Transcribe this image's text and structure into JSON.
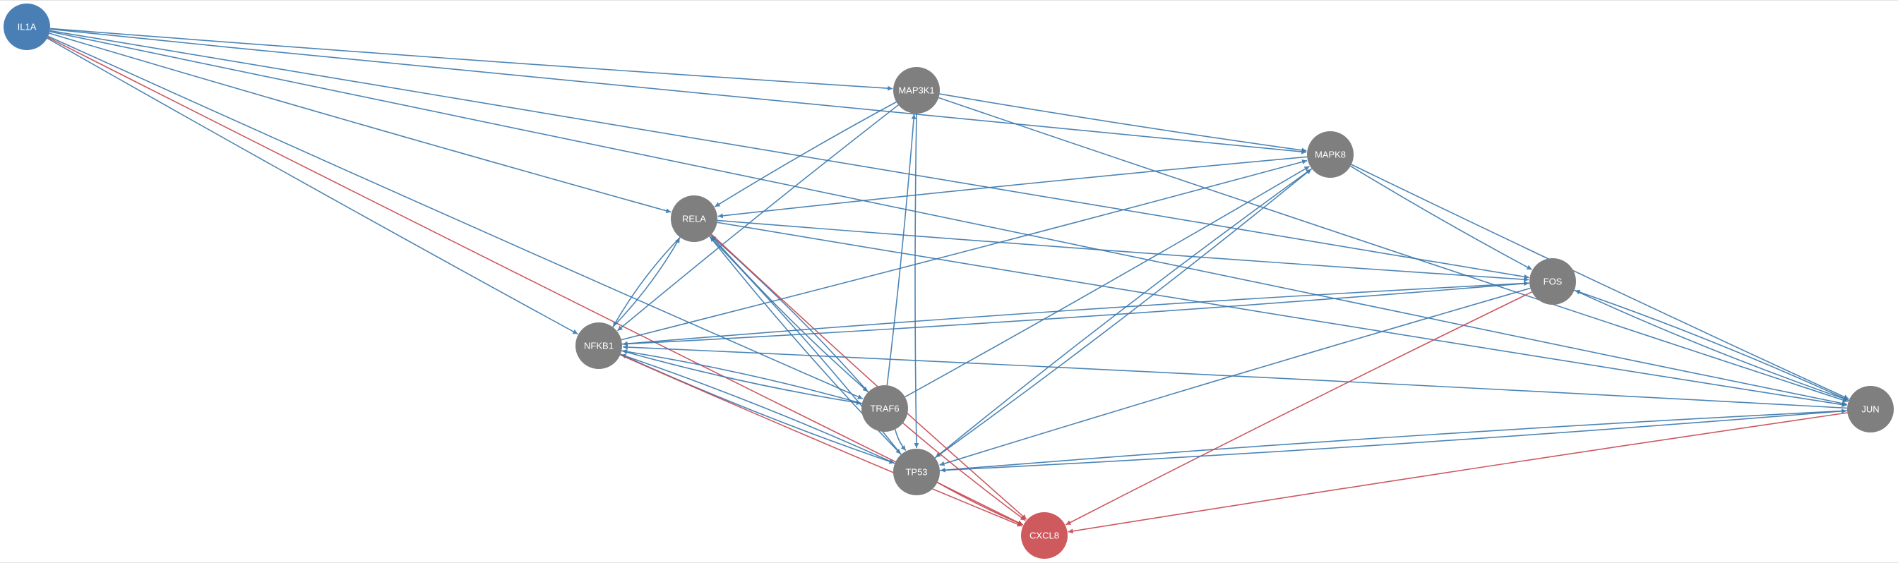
{
  "colors": {
    "source_node": "#4a7fb5",
    "target_node": "#cf5a5e",
    "gene_node": "#7f7f7f",
    "edge_activation": "#3a78ad",
    "edge_induction": "#c6474f",
    "node_text": "#ffffff"
  },
  "nodes": [
    {
      "id": "IL1A",
      "label": "IL1A",
      "kind": "source"
    },
    {
      "id": "MAP3K1",
      "label": "MAP3K1",
      "kind": "gene"
    },
    {
      "id": "MAPK8",
      "label": "MAPK8",
      "kind": "gene"
    },
    {
      "id": "RELA",
      "label": "RELA",
      "kind": "gene"
    },
    {
      "id": "FOS",
      "label": "FOS",
      "kind": "gene"
    },
    {
      "id": "NFKB1",
      "label": "NFKB1",
      "kind": "gene"
    },
    {
      "id": "JUN",
      "label": "JUN",
      "kind": "gene"
    },
    {
      "id": "TRAF6",
      "label": "TRAF6",
      "kind": "gene"
    },
    {
      "id": "TP53",
      "label": "TP53",
      "kind": "gene"
    },
    {
      "id": "CXCL8",
      "label": "CXCL8",
      "kind": "target"
    }
  ],
  "edges": [
    {
      "from": "IL1A",
      "to": "MAP3K1",
      "type": "activation"
    },
    {
      "from": "IL1A",
      "to": "MAPK8",
      "type": "activation"
    },
    {
      "from": "IL1A",
      "to": "RELA",
      "type": "activation"
    },
    {
      "from": "IL1A",
      "to": "FOS",
      "type": "activation"
    },
    {
      "from": "IL1A",
      "to": "JUN",
      "type": "activation"
    },
    {
      "from": "IL1A",
      "to": "NFKB1",
      "type": "activation"
    },
    {
      "from": "IL1A",
      "to": "TRAF6",
      "type": "activation"
    },
    {
      "from": "IL1A",
      "to": "CXCL8",
      "type": "induction"
    },
    {
      "from": "MAP3K1",
      "to": "MAPK8",
      "type": "activation"
    },
    {
      "from": "MAP3K1",
      "to": "RELA",
      "type": "activation"
    },
    {
      "from": "MAP3K1",
      "to": "NFKB1",
      "type": "activation"
    },
    {
      "from": "MAP3K1",
      "to": "TP53",
      "type": "activation"
    },
    {
      "from": "MAP3K1",
      "to": "JUN",
      "type": "activation"
    },
    {
      "from": "TRAF6",
      "to": "MAP3K1",
      "type": "activation"
    },
    {
      "from": "MAPK8",
      "to": "RELA",
      "type": "activation"
    },
    {
      "from": "MAPK8",
      "to": "FOS",
      "type": "activation"
    },
    {
      "from": "MAPK8",
      "to": "JUN",
      "type": "activation"
    },
    {
      "from": "MAPK8",
      "to": "TP53",
      "type": "activation"
    },
    {
      "from": "TRAF6",
      "to": "MAPK8",
      "type": "activation"
    },
    {
      "from": "TP53",
      "to": "MAPK8",
      "type": "activation"
    },
    {
      "from": "NFKB1",
      "to": "MAPK8",
      "type": "activation"
    },
    {
      "from": "RELA",
      "to": "FOS",
      "type": "activation"
    },
    {
      "from": "RELA",
      "to": "JUN",
      "type": "activation"
    },
    {
      "from": "RELA",
      "to": "NFKB1",
      "type": "activation"
    },
    {
      "from": "NFKB1",
      "to": "RELA",
      "type": "activation"
    },
    {
      "from": "RELA",
      "to": "TRAF6",
      "type": "activation"
    },
    {
      "from": "TRAF6",
      "to": "RELA",
      "type": "activation"
    },
    {
      "from": "RELA",
      "to": "TP53",
      "type": "activation"
    },
    {
      "from": "TP53",
      "to": "RELA",
      "type": "activation"
    },
    {
      "from": "RELA",
      "to": "CXCL8",
      "type": "induction"
    },
    {
      "from": "FOS",
      "to": "JUN",
      "type": "activation"
    },
    {
      "from": "JUN",
      "to": "FOS",
      "type": "activation"
    },
    {
      "from": "FOS",
      "to": "NFKB1",
      "type": "activation"
    },
    {
      "from": "NFKB1",
      "to": "FOS",
      "type": "activation"
    },
    {
      "from": "FOS",
      "to": "TP53",
      "type": "activation"
    },
    {
      "from": "FOS",
      "to": "CXCL8",
      "type": "induction"
    },
    {
      "from": "JUN",
      "to": "NFKB1",
      "type": "activation"
    },
    {
      "from": "JUN",
      "to": "TP53",
      "type": "activation"
    },
    {
      "from": "TP53",
      "to": "JUN",
      "type": "activation"
    },
    {
      "from": "JUN",
      "to": "CXCL8",
      "type": "induction"
    },
    {
      "from": "NFKB1",
      "to": "TRAF6",
      "type": "activation"
    },
    {
      "from": "TRAF6",
      "to": "NFKB1",
      "type": "activation"
    },
    {
      "from": "NFKB1",
      "to": "TP53",
      "type": "activation"
    },
    {
      "from": "TP53",
      "to": "NFKB1",
      "type": "activation"
    },
    {
      "from": "NFKB1",
      "to": "CXCL8",
      "type": "induction"
    },
    {
      "from": "TRAF6",
      "to": "TP53",
      "type": "activation"
    },
    {
      "from": "TRAF6",
      "to": "CXCL8",
      "type": "induction"
    },
    {
      "from": "TP53",
      "to": "CXCL8",
      "type": "induction"
    }
  ]
}
